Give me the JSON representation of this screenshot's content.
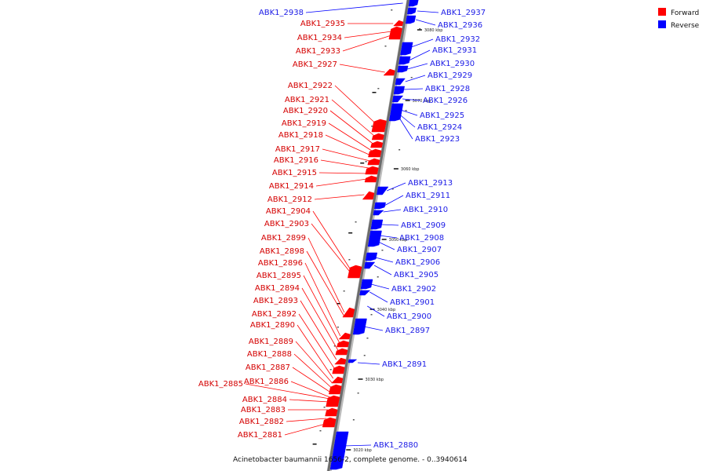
{
  "legend": {
    "forward_label": "Forward",
    "reverse_label": "Reverse",
    "forward_color": "#ff0000",
    "reverse_color": "#0000ff"
  },
  "caption": "Acinetobacter baumannii 1656-2, complete genome. - 0..3940614",
  "scale": {
    "unit": "kbp",
    "ticks": [
      "3020 kbp",
      "3030 kbp",
      "3040 kbp",
      "3050 kbp",
      "3060 kbp",
      "3070 kbp",
      "3080 kbp"
    ]
  },
  "genes": {
    "forward": [
      "ABK1_2935",
      "ABK1_2934",
      "ABK1_2933",
      "ABK1_2927",
      "ABK1_2922",
      "ABK1_2921",
      "ABK1_2920",
      "ABK1_2919",
      "ABK1_2918",
      "ABK1_2917",
      "ABK1_2916",
      "ABK1_2915",
      "ABK1_2914",
      "ABK1_2912",
      "ABK1_2904",
      "ABK1_2903",
      "ABK1_2899",
      "ABK1_2898",
      "ABK1_2896",
      "ABK1_2895",
      "ABK1_2894",
      "ABK1_2893",
      "ABK1_2892",
      "ABK1_2890",
      "ABK1_2889",
      "ABK1_2888",
      "ABK1_2887",
      "ABK1_2886",
      "ABK1_2885",
      "ABK1_2884",
      "ABK1_2883",
      "ABK1_2882",
      "ABK1_2881"
    ],
    "reverse": [
      "ABK1_2938",
      "ABK1_2937",
      "ABK1_2936",
      "ABK1_2932",
      "ABK1_2931",
      "ABK1_2930",
      "ABK1_2929",
      "ABK1_2928",
      "ABK1_2926",
      "ABK1_2925",
      "ABK1_2924",
      "ABK1_2923",
      "ABK1_2913",
      "ABK1_2911",
      "ABK1_2910",
      "ABK1_2909",
      "ABK1_2908",
      "ABK1_2907",
      "ABK1_2906",
      "ABK1_2905",
      "ABK1_2902",
      "ABK1_2901",
      "ABK1_2900",
      "ABK1_2897",
      "ABK1_2891",
      "ABK1_2880"
    ]
  }
}
